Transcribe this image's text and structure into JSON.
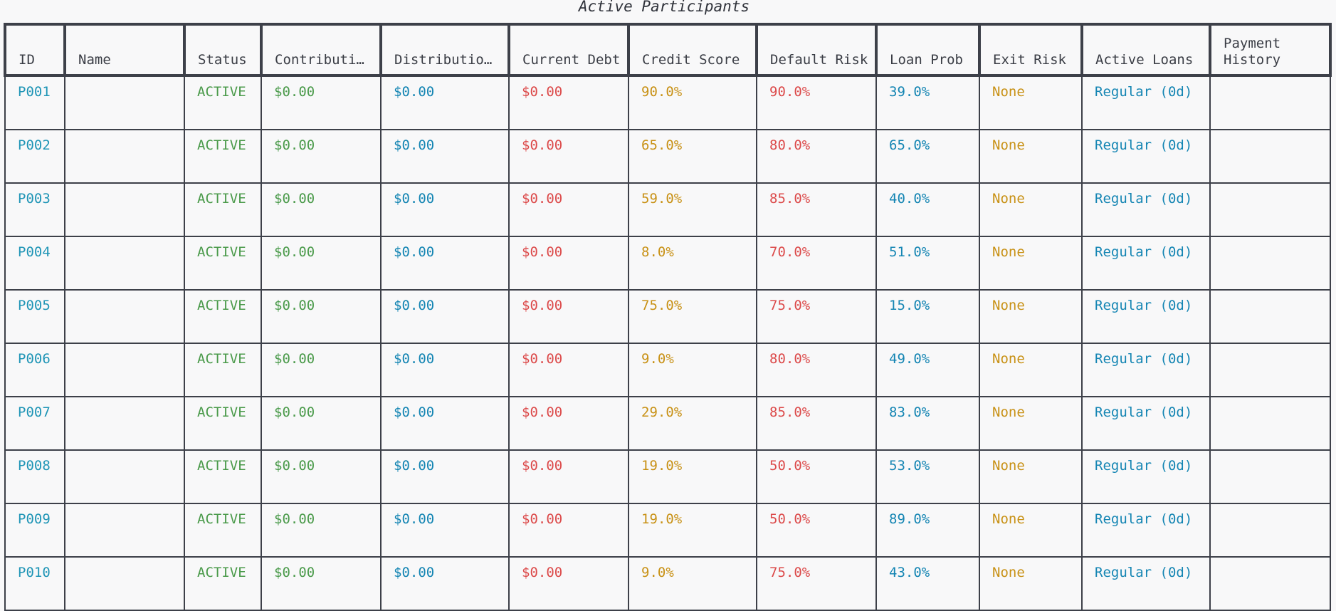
{
  "title": "Active Participants",
  "colors": {
    "id": "#1f95b6",
    "status": "#4a9a4a",
    "contribution": "#4a9a4a",
    "distribution": "#1485b3",
    "debt": "#dc4a4a",
    "credit": "#c89115",
    "default_risk": "#dc4a4a",
    "loan_prob": "#1485b3",
    "exit_risk": "#c89115",
    "active_loans": "#1485b3"
  },
  "columns": [
    {
      "key": "id",
      "label": "ID"
    },
    {
      "key": "name",
      "label": "Name"
    },
    {
      "key": "status",
      "label": "Status"
    },
    {
      "key": "contribution",
      "label": "Contributi…"
    },
    {
      "key": "distribution",
      "label": "Distributio…"
    },
    {
      "key": "debt",
      "label": "Current Debt"
    },
    {
      "key": "credit",
      "label": "Credit Score"
    },
    {
      "key": "default_risk",
      "label": "Default Risk"
    },
    {
      "key": "loan_prob",
      "label": "Loan Prob"
    },
    {
      "key": "exit_risk",
      "label": "Exit Risk"
    },
    {
      "key": "active_loans",
      "label": "Active Loans"
    },
    {
      "key": "payment_history",
      "label": "Payment History"
    }
  ],
  "rows": [
    {
      "id": "P001",
      "name": "",
      "status": "ACTIVE",
      "contribution": "$0.00",
      "distribution": "$0.00",
      "debt": "$0.00",
      "credit": "90.0%",
      "default_risk": "90.0%",
      "loan_prob": "39.0%",
      "exit_risk": "None",
      "active_loans": "Regular (0d)",
      "payment_history": ""
    },
    {
      "id": "P002",
      "name": "",
      "status": "ACTIVE",
      "contribution": "$0.00",
      "distribution": "$0.00",
      "debt": "$0.00",
      "credit": "65.0%",
      "default_risk": "80.0%",
      "loan_prob": "65.0%",
      "exit_risk": "None",
      "active_loans": "Regular (0d)",
      "payment_history": ""
    },
    {
      "id": "P003",
      "name": "",
      "status": "ACTIVE",
      "contribution": "$0.00",
      "distribution": "$0.00",
      "debt": "$0.00",
      "credit": "59.0%",
      "default_risk": "85.0%",
      "loan_prob": "40.0%",
      "exit_risk": "None",
      "active_loans": "Regular (0d)",
      "payment_history": ""
    },
    {
      "id": "P004",
      "name": "",
      "status": "ACTIVE",
      "contribution": "$0.00",
      "distribution": "$0.00",
      "debt": "$0.00",
      "credit": "8.0%",
      "default_risk": "70.0%",
      "loan_prob": "51.0%",
      "exit_risk": "None",
      "active_loans": "Regular (0d)",
      "payment_history": ""
    },
    {
      "id": "P005",
      "name": "",
      "status": "ACTIVE",
      "contribution": "$0.00",
      "distribution": "$0.00",
      "debt": "$0.00",
      "credit": "75.0%",
      "default_risk": "75.0%",
      "loan_prob": "15.0%",
      "exit_risk": "None",
      "active_loans": "Regular (0d)",
      "payment_history": ""
    },
    {
      "id": "P006",
      "name": "",
      "status": "ACTIVE",
      "contribution": "$0.00",
      "distribution": "$0.00",
      "debt": "$0.00",
      "credit": "9.0%",
      "default_risk": "80.0%",
      "loan_prob": "49.0%",
      "exit_risk": "None",
      "active_loans": "Regular (0d)",
      "payment_history": ""
    },
    {
      "id": "P007",
      "name": "",
      "status": "ACTIVE",
      "contribution": "$0.00",
      "distribution": "$0.00",
      "debt": "$0.00",
      "credit": "29.0%",
      "default_risk": "85.0%",
      "loan_prob": "83.0%",
      "exit_risk": "None",
      "active_loans": "Regular (0d)",
      "payment_history": ""
    },
    {
      "id": "P008",
      "name": "",
      "status": "ACTIVE",
      "contribution": "$0.00",
      "distribution": "$0.00",
      "debt": "$0.00",
      "credit": "19.0%",
      "default_risk": "50.0%",
      "loan_prob": "53.0%",
      "exit_risk": "None",
      "active_loans": "Regular (0d)",
      "payment_history": ""
    },
    {
      "id": "P009",
      "name": "",
      "status": "ACTIVE",
      "contribution": "$0.00",
      "distribution": "$0.00",
      "debt": "$0.00",
      "credit": "19.0%",
      "default_risk": "50.0%",
      "loan_prob": "89.0%",
      "exit_risk": "None",
      "active_loans": "Regular (0d)",
      "payment_history": ""
    },
    {
      "id": "P010",
      "name": "",
      "status": "ACTIVE",
      "contribution": "$0.00",
      "distribution": "$0.00",
      "debt": "$0.00",
      "credit": "9.0%",
      "default_risk": "75.0%",
      "loan_prob": "43.0%",
      "exit_risk": "None",
      "active_loans": "Regular (0d)",
      "payment_history": ""
    }
  ]
}
